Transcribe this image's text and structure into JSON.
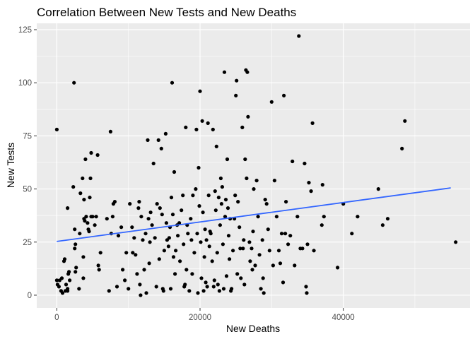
{
  "chart_data": {
    "type": "scatter",
    "title": "Correlation Between New Tests and New Deaths",
    "xlabel": "New Deaths",
    "ylabel": "New Tests",
    "xlim": [
      -2800,
      57700
    ],
    "ylim": [
      -6,
      128
    ],
    "x_ticks": [
      0,
      20000,
      40000
    ],
    "x_tick_labels": [
      "0",
      "20000",
      "40000"
    ],
    "y_ticks": [
      0,
      25,
      50,
      75,
      100,
      125
    ],
    "y_tick_labels": [
      "0",
      "25",
      "50",
      "75",
      "100",
      "125"
    ],
    "grid": true,
    "legend": "none",
    "colors": {
      "panel": "#ebebeb",
      "grid": "#ffffff",
      "point": "#000000",
      "trend": "#3366ff"
    },
    "trend_line": {
      "x": [
        0,
        55000
      ],
      "y": [
        25.3,
        50.5
      ]
    },
    "points": [
      [
        0,
        78
      ],
      [
        0,
        7
      ],
      [
        100,
        5
      ],
      [
        300,
        4
      ],
      [
        400,
        7
      ],
      [
        600,
        2
      ],
      [
        700,
        8
      ],
      [
        800,
        1
      ],
      [
        1000,
        16
      ],
      [
        1100,
        17
      ],
      [
        1200,
        2
      ],
      [
        1300,
        5
      ],
      [
        1500,
        41
      ],
      [
        1500,
        2
      ],
      [
        1500,
        3
      ],
      [
        1600,
        10
      ],
      [
        1700,
        11
      ],
      [
        1800,
        7
      ],
      [
        2300,
        51
      ],
      [
        2400,
        100
      ],
      [
        2500,
        22
      ],
      [
        2500,
        31
      ],
      [
        2600,
        24
      ],
      [
        2600,
        11
      ],
      [
        2700,
        13
      ],
      [
        3100,
        3
      ],
      [
        3200,
        29
      ],
      [
        3300,
        48
      ],
      [
        3600,
        55
      ],
      [
        3700,
        18
      ],
      [
        3700,
        8
      ],
      [
        3800,
        36
      ],
      [
        3800,
        45
      ],
      [
        3900,
        35
      ],
      [
        4000,
        64
      ],
      [
        4100,
        37
      ],
      [
        4300,
        34
      ],
      [
        4400,
        31
      ],
      [
        4500,
        30
      ],
      [
        4600,
        46
      ],
      [
        4700,
        55
      ],
      [
        4800,
        37
      ],
      [
        4800,
        67
      ],
      [
        5000,
        37
      ],
      [
        5300,
        33
      ],
      [
        5500,
        37
      ],
      [
        5700,
        66
      ],
      [
        5800,
        14
      ],
      [
        5900,
        12
      ],
      [
        6100,
        20
      ],
      [
        7000,
        36
      ],
      [
        7300,
        2
      ],
      [
        7500,
        77
      ],
      [
        7600,
        29
      ],
      [
        7800,
        37
      ],
      [
        7900,
        43
      ],
      [
        8100,
        44
      ],
      [
        8400,
        4
      ],
      [
        8600,
        28
      ],
      [
        9000,
        32
      ],
      [
        9200,
        12
      ],
      [
        9500,
        7
      ],
      [
        9700,
        20
      ],
      [
        10000,
        3
      ],
      [
        10200,
        43
      ],
      [
        10500,
        32
      ],
      [
        10600,
        20
      ],
      [
        10800,
        27
      ],
      [
        11000,
        19
      ],
      [
        11200,
        10
      ],
      [
        11400,
        41
      ],
      [
        11500,
        44
      ],
      [
        11600,
        5
      ],
      [
        11700,
        0
      ],
      [
        11800,
        37
      ],
      [
        12000,
        26
      ],
      [
        12200,
        12
      ],
      [
        12400,
        29
      ],
      [
        12500,
        1
      ],
      [
        12700,
        73
      ],
      [
        12800,
        36
      ],
      [
        12900,
        15
      ],
      [
        13000,
        25
      ],
      [
        13100,
        39
      ],
      [
        13300,
        33
      ],
      [
        13500,
        62
      ],
      [
        13700,
        27
      ],
      [
        13900,
        4
      ],
      [
        14000,
        43
      ],
      [
        14200,
        73
      ],
      [
        14300,
        17
      ],
      [
        14400,
        41
      ],
      [
        14600,
        69
      ],
      [
        14700,
        38
      ],
      [
        14800,
        3
      ],
      [
        14900,
        2
      ],
      [
        15000,
        21
      ],
      [
        15200,
        76
      ],
      [
        15300,
        34
      ],
      [
        15400,
        26
      ],
      [
        15600,
        23
      ],
      [
        15700,
        27
      ],
      [
        15800,
        32
      ],
      [
        15900,
        3
      ],
      [
        16000,
        46
      ],
      [
        16100,
        100
      ],
      [
        16200,
        38
      ],
      [
        16300,
        18
      ],
      [
        16400,
        58
      ],
      [
        16500,
        10
      ],
      [
        16600,
        21
      ],
      [
        16800,
        33
      ],
      [
        16900,
        28
      ],
      [
        17100,
        34
      ],
      [
        17200,
        16
      ],
      [
        17400,
        40
      ],
      [
        17600,
        47
      ],
      [
        17700,
        24
      ],
      [
        17800,
        4
      ],
      [
        17900,
        5
      ],
      [
        18000,
        79
      ],
      [
        18100,
        12
      ],
      [
        18200,
        33
      ],
      [
        18300,
        29
      ],
      [
        18500,
        2
      ],
      [
        18700,
        36
      ],
      [
        18800,
        26
      ],
      [
        18900,
        10
      ],
      [
        19000,
        47
      ],
      [
        19200,
        20
      ],
      [
        19400,
        50
      ],
      [
        19500,
        78
      ],
      [
        19600,
        29
      ],
      [
        19700,
        1
      ],
      [
        19800,
        60
      ],
      [
        19900,
        42
      ],
      [
        20000,
        96
      ],
      [
        20100,
        25
      ],
      [
        20200,
        8
      ],
      [
        20300,
        82
      ],
      [
        20400,
        39
      ],
      [
        20500,
        2
      ],
      [
        20600,
        18
      ],
      [
        20700,
        31
      ],
      [
        20800,
        6
      ],
      [
        20900,
        26
      ],
      [
        21000,
        4
      ],
      [
        21100,
        81
      ],
      [
        21200,
        47
      ],
      [
        21300,
        23
      ],
      [
        21400,
        30
      ],
      [
        21500,
        29
      ],
      [
        21700,
        16
      ],
      [
        21800,
        78
      ],
      [
        21900,
        4
      ],
      [
        22000,
        7
      ],
      [
        22100,
        49
      ],
      [
        22200,
        40
      ],
      [
        22300,
        70
      ],
      [
        22400,
        20
      ],
      [
        22500,
        5
      ],
      [
        22600,
        46
      ],
      [
        22700,
        2
      ],
      [
        22800,
        33
      ],
      [
        22900,
        55
      ],
      [
        23000,
        43
      ],
      [
        23100,
        51
      ],
      [
        23200,
        24
      ],
      [
        23300,
        3
      ],
      [
        23400,
        105
      ],
      [
        23500,
        37
      ],
      [
        23600,
        45
      ],
      [
        23700,
        9
      ],
      [
        23800,
        64
      ],
      [
        23900,
        41
      ],
      [
        24000,
        28
      ],
      [
        24100,
        17
      ],
      [
        24200,
        36
      ],
      [
        24300,
        2
      ],
      [
        24400,
        3
      ],
      [
        24600,
        21
      ],
      [
        24800,
        36
      ],
      [
        24900,
        47
      ],
      [
        25000,
        94
      ],
      [
        25100,
        101
      ],
      [
        25200,
        10
      ],
      [
        25300,
        44
      ],
      [
        25500,
        32
      ],
      [
        25600,
        22
      ],
      [
        25700,
        8
      ],
      [
        25900,
        79
      ],
      [
        26000,
        22
      ],
      [
        26100,
        26
      ],
      [
        26200,
        5
      ],
      [
        26300,
        64
      ],
      [
        26400,
        106
      ],
      [
        26500,
        55
      ],
      [
        26600,
        105
      ],
      [
        26700,
        84
      ],
      [
        26900,
        25
      ],
      [
        27000,
        16
      ],
      [
        27200,
        22
      ],
      [
        27300,
        12
      ],
      [
        27400,
        30
      ],
      [
        27500,
        50
      ],
      [
        27700,
        14
      ],
      [
        27900,
        54
      ],
      [
        28100,
        37
      ],
      [
        28300,
        19
      ],
      [
        28500,
        3
      ],
      [
        28700,
        26
      ],
      [
        28800,
        8
      ],
      [
        28900,
        1
      ],
      [
        29100,
        45
      ],
      [
        29300,
        43
      ],
      [
        29500,
        31
      ],
      [
        29700,
        21
      ],
      [
        30000,
        91
      ],
      [
        30200,
        14
      ],
      [
        30400,
        54
      ],
      [
        30700,
        37
      ],
      [
        31000,
        21
      ],
      [
        31200,
        15
      ],
      [
        31400,
        29
      ],
      [
        31600,
        6
      ],
      [
        31700,
        94
      ],
      [
        31900,
        29
      ],
      [
        32000,
        44
      ],
      [
        32300,
        24
      ],
      [
        32600,
        28
      ],
      [
        32900,
        63
      ],
      [
        33200,
        14
      ],
      [
        33600,
        37
      ],
      [
        33800,
        122
      ],
      [
        34000,
        22
      ],
      [
        34300,
        22
      ],
      [
        34600,
        62
      ],
      [
        34800,
        4
      ],
      [
        34900,
        1
      ],
      [
        35000,
        24
      ],
      [
        35200,
        53
      ],
      [
        35500,
        49
      ],
      [
        35700,
        81
      ],
      [
        35900,
        21
      ],
      [
        37000,
        33
      ],
      [
        37100,
        52
      ],
      [
        37300,
        37
      ],
      [
        39200,
        13
      ],
      [
        40000,
        43
      ],
      [
        41200,
        29
      ],
      [
        42000,
        37
      ],
      [
        44900,
        50
      ],
      [
        45500,
        33
      ],
      [
        46200,
        36
      ],
      [
        48200,
        69
      ],
      [
        48600,
        82
      ],
      [
        55700,
        25
      ]
    ]
  }
}
